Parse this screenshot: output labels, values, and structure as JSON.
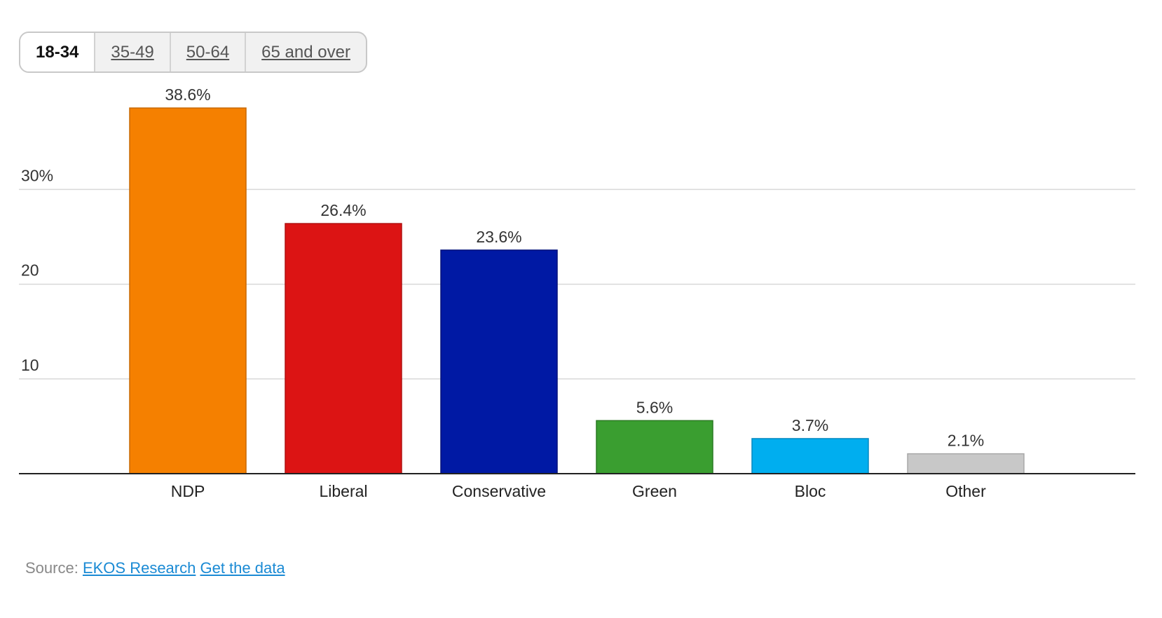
{
  "tabs": [
    {
      "label": "18-34",
      "active": true
    },
    {
      "label": "35-49",
      "active": false
    },
    {
      "label": "50-64",
      "active": false
    },
    {
      "label": "65 and over",
      "active": false
    }
  ],
  "chart_data": {
    "type": "bar",
    "categories": [
      "NDP",
      "Liberal",
      "Conservative",
      "Green",
      "Bloc",
      "Other"
    ],
    "values": [
      38.6,
      26.4,
      23.6,
      5.6,
      3.7,
      2.1
    ],
    "data_labels": [
      "38.6%",
      "26.4%",
      "23.6%",
      "5.6%",
      "3.7%",
      "2.1%"
    ],
    "colors": [
      "#f58000",
      "#dc1414",
      "#0019a4",
      "#3a9e30",
      "#00aeef",
      "#c8c8c8"
    ],
    "border_colors": [
      "#c86800",
      "#b01010",
      "#00107a",
      "#2a7a22",
      "#0088c0",
      "#a8a8a8"
    ],
    "yticks": [
      10,
      20,
      30
    ],
    "ytick_labels": [
      "10",
      "20",
      "30%"
    ],
    "ylim": [
      0,
      40
    ],
    "grid": true,
    "title": "",
    "xlabel": "",
    "ylabel": ""
  },
  "source": {
    "prefix": "Source:",
    "link1": "EKOS Research",
    "link2": "Get the data"
  }
}
